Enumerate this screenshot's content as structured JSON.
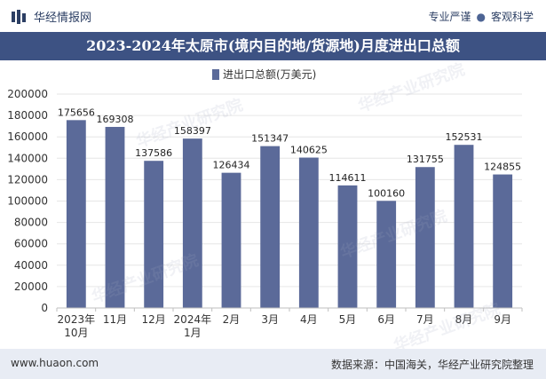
{
  "header": {
    "brand": "华经情报网",
    "tagline_left": "专业严谨",
    "tagline_sep": "●",
    "tagline_right": "客观科学"
  },
  "chart_data": {
    "type": "bar",
    "title": "2023-2024年太原市(境内目的地/货源地)月度进出口总额",
    "series": [
      {
        "name": "进出口总额(万美元)",
        "values": [
          175656,
          169308,
          137586,
          158397,
          126434,
          151347,
          140625,
          114611,
          100160,
          131755,
          152531,
          124855
        ]
      }
    ],
    "categories": [
      "2023年\n10月",
      "11月",
      "12月",
      "2024年\n1月",
      "2月",
      "3月",
      "4月",
      "5月",
      "6月",
      "7月",
      "8月",
      "9月"
    ],
    "ylim": [
      0,
      200000
    ],
    "yticks": [
      0,
      20000,
      40000,
      60000,
      80000,
      100000,
      120000,
      140000,
      160000,
      180000,
      200000
    ],
    "xlabel": "",
    "ylabel": "",
    "legend_position": "top-center",
    "bar_color": "#5b6a99"
  },
  "watermark": "华经产业研究院",
  "footer": {
    "url": "www.huaon.com",
    "source": "数据来源：中国海关，华经产业研究院整理"
  }
}
